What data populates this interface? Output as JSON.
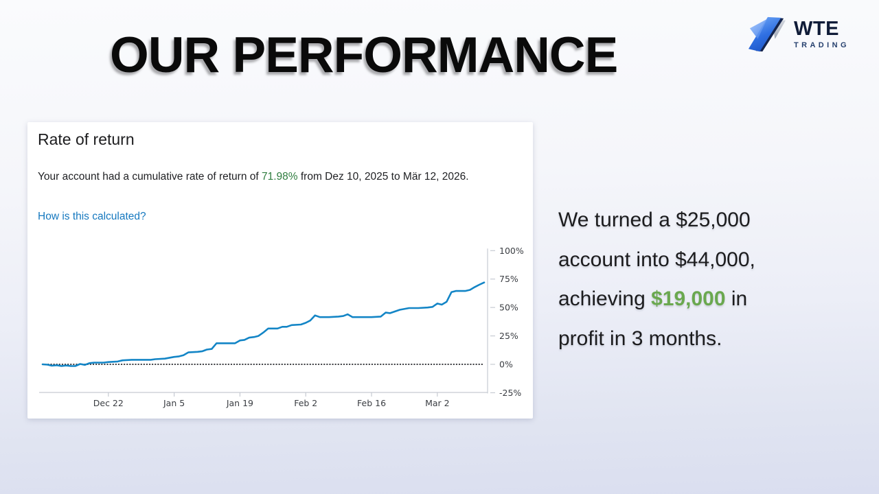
{
  "slide": {
    "title": "OUR PERFORMANCE"
  },
  "logo": {
    "name": "WTE",
    "subname": "TRADING",
    "icon": "wte-arrow-mark"
  },
  "card": {
    "heading": "Rate of return",
    "body_pre": "Your account had a cumulative rate of return of ",
    "body_highlight": "71.98%",
    "body_post": " from Dez 10, 2025 to Mär 12, 2026.",
    "link": "How is this calculated?"
  },
  "callout": {
    "pre": "We turned a $25,000 account into $44,000, achieving ",
    "highlight": "$19,000",
    "post": " in profit in 3 months."
  },
  "colors": {
    "line_blue": "#1385c6",
    "link_blue": "#1578bf",
    "green_dark": "#2f7d3f",
    "green_light": "#6aa84f",
    "navy": "#101c38",
    "axis_gray": "#c6cad2",
    "tick_text": "#3a3d42"
  },
  "chart_data": {
    "type": "line",
    "title": "Rate of return",
    "ylabel_suffix": "%",
    "ylim": [
      -25,
      100
    ],
    "grid": false,
    "baseline": {
      "value": 0,
      "style": "dotted"
    },
    "period": {
      "from": "Dez 10, 2025",
      "to": "Mär 12, 2026"
    },
    "final_value_pct": 71.98,
    "y_ticks": [
      {
        "label": "100%",
        "value": 100
      },
      {
        "label": "75%",
        "value": 75
      },
      {
        "label": "50%",
        "value": 50
      },
      {
        "label": "25%",
        "value": 25
      },
      {
        "label": "0%",
        "value": 0
      },
      {
        "label": "-25%",
        "value": -25
      }
    ],
    "x_ticks": [
      {
        "label": "Dec 22",
        "f": 0.149
      },
      {
        "label": "Jan 5",
        "f": 0.298
      },
      {
        "label": "Jan 19",
        "f": 0.447
      },
      {
        "label": "Feb 2",
        "f": 0.596
      },
      {
        "label": "Feb 16",
        "f": 0.745
      },
      {
        "label": "Mar 2",
        "f": 0.894
      }
    ],
    "series": [
      {
        "name": "Cumulative rate of return (%)",
        "color": "#1385c6",
        "points": [
          [
            0.0,
            0
          ],
          [
            0.011,
            -0.3
          ],
          [
            0.021,
            -1.2
          ],
          [
            0.032,
            -0.8
          ],
          [
            0.043,
            -1.5
          ],
          [
            0.053,
            -1.0
          ],
          [
            0.064,
            -1.5
          ],
          [
            0.074,
            -1.5
          ],
          [
            0.085,
            0.3
          ],
          [
            0.096,
            -0.5
          ],
          [
            0.106,
            1.0
          ],
          [
            0.117,
            1.5
          ],
          [
            0.138,
            1.5
          ],
          [
            0.149,
            2.0
          ],
          [
            0.17,
            2.5
          ],
          [
            0.181,
            3.5
          ],
          [
            0.202,
            4.0
          ],
          [
            0.223,
            4.0
          ],
          [
            0.245,
            4.0
          ],
          [
            0.255,
            4.5
          ],
          [
            0.277,
            5.0
          ],
          [
            0.298,
            6.5
          ],
          [
            0.309,
            7.0
          ],
          [
            0.319,
            8.0
          ],
          [
            0.33,
            10.5
          ],
          [
            0.351,
            11.0
          ],
          [
            0.362,
            11.5
          ],
          [
            0.372,
            13.0
          ],
          [
            0.383,
            13.5
          ],
          [
            0.394,
            18.5
          ],
          [
            0.415,
            18.5
          ],
          [
            0.436,
            18.5
          ],
          [
            0.447,
            21.0
          ],
          [
            0.457,
            21.5
          ],
          [
            0.468,
            23.5
          ],
          [
            0.479,
            24.0
          ],
          [
            0.489,
            25.0
          ],
          [
            0.5,
            28.0
          ],
          [
            0.511,
            31.5
          ],
          [
            0.532,
            31.5
          ],
          [
            0.543,
            33.0
          ],
          [
            0.553,
            33.0
          ],
          [
            0.564,
            34.5
          ],
          [
            0.585,
            35.0
          ],
          [
            0.596,
            36.5
          ],
          [
            0.606,
            38.5
          ],
          [
            0.617,
            43.0
          ],
          [
            0.628,
            41.5
          ],
          [
            0.649,
            41.5
          ],
          [
            0.67,
            42.0
          ],
          [
            0.681,
            42.5
          ],
          [
            0.691,
            44.0
          ],
          [
            0.702,
            41.5
          ],
          [
            0.723,
            41.5
          ],
          [
            0.745,
            41.5
          ],
          [
            0.766,
            42.0
          ],
          [
            0.777,
            45.5
          ],
          [
            0.787,
            45.0
          ],
          [
            0.809,
            48.0
          ],
          [
            0.83,
            49.5
          ],
          [
            0.851,
            49.5
          ],
          [
            0.872,
            50.0
          ],
          [
            0.883,
            50.5
          ],
          [
            0.894,
            53.5
          ],
          [
            0.904,
            52.5
          ],
          [
            0.915,
            55.0
          ],
          [
            0.926,
            63.5
          ],
          [
            0.936,
            64.5
          ],
          [
            0.957,
            64.5
          ],
          [
            0.968,
            65.5
          ],
          [
            0.979,
            68.0
          ],
          [
            0.989,
            70.0
          ],
          [
            1.0,
            71.98
          ]
        ]
      }
    ]
  }
}
